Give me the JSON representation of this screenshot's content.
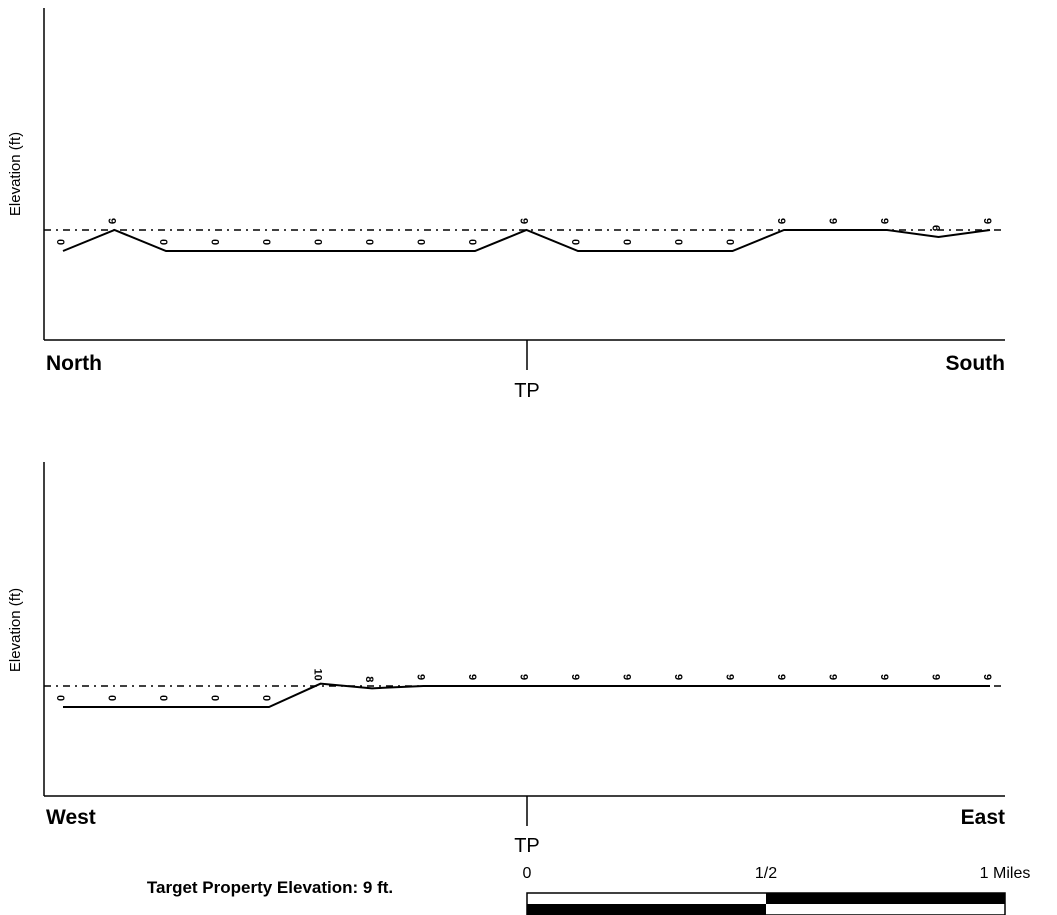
{
  "chart_data": [
    {
      "type": "line",
      "ylabel": "Elevation (ft)",
      "x_start_label": "North",
      "x_end_label": "South",
      "center_label": "TP",
      "reference_elevation": 9,
      "values": [
        0,
        9,
        0,
        0,
        0,
        0,
        0,
        0,
        0,
        9,
        0,
        0,
        0,
        0,
        9,
        9,
        9,
        6,
        9
      ],
      "labels": [
        "0",
        "9",
        "0",
        "0",
        "0",
        "0",
        "0",
        "0",
        "0",
        "9",
        "0",
        "0",
        "0",
        "0",
        "9",
        "9",
        "9",
        "6",
        "9"
      ]
    },
    {
      "type": "line",
      "ylabel": "Elevation (ft)",
      "x_start_label": "West",
      "x_end_label": "East",
      "center_label": "TP",
      "reference_elevation": 9,
      "values": [
        0,
        0,
        0,
        0,
        0,
        10,
        8,
        9,
        9,
        9,
        9,
        9,
        9,
        9,
        9,
        9,
        9,
        9,
        9
      ],
      "labels": [
        "0",
        "0",
        "0",
        "0",
        "0",
        "10",
        "8",
        "9",
        "9",
        "9",
        "9",
        "9",
        "9",
        "9",
        "9",
        "9",
        "9",
        "9",
        "9"
      ]
    }
  ],
  "scale_bar": {
    "labels": [
      "0",
      "1/2",
      "1 Miles"
    ]
  },
  "footer": {
    "target_elevation_text": "Target Property Elevation: 9 ft."
  }
}
